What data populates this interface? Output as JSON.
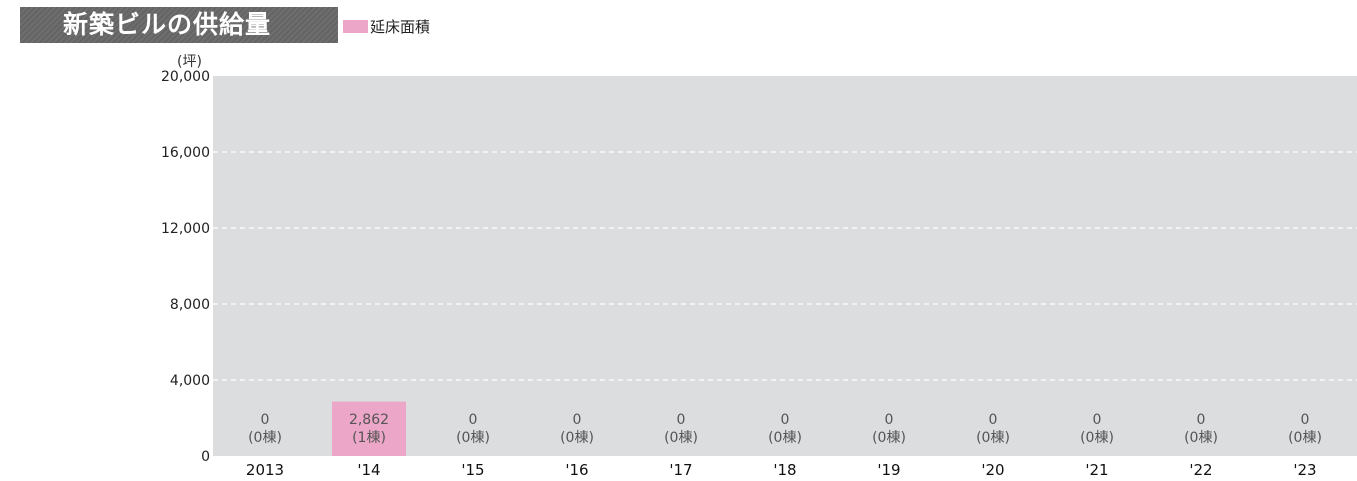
{
  "title": "新築ビルの供給量",
  "colors": {
    "plot_bg": "#dcdddf",
    "bar": "#eca6c8",
    "grid": "#ffffff",
    "title_bg": "#6a6a6a"
  },
  "chart_data": {
    "type": "bar",
    "unit_label": "(坪)",
    "legend": [
      {
        "name": "延床面積",
        "color": "#eca6c8"
      }
    ],
    "categories": [
      "2013",
      "'14",
      "'15",
      "'16",
      "'17",
      "'18",
      "'19",
      "'20",
      "'21",
      "'22",
      "'23"
    ],
    "series": [
      {
        "name": "延床面積",
        "values": [
          0,
          2862,
          0,
          0,
          0,
          0,
          0,
          0,
          0,
          0,
          0
        ]
      }
    ],
    "value_labels": [
      "0",
      "2,862",
      "0",
      "0",
      "0",
      "0",
      "0",
      "0",
      "0",
      "0",
      "0"
    ],
    "count_labels": [
      "(0棟)",
      "(1棟)",
      "(0棟)",
      "(0棟)",
      "(0棟)",
      "(0棟)",
      "(0棟)",
      "(0棟)",
      "(0棟)",
      "(0棟)",
      "(0棟)"
    ],
    "yticks": [
      0,
      4000,
      8000,
      12000,
      16000,
      20000
    ],
    "ytick_labels": [
      "0",
      "4,000",
      "8,000",
      "12,000",
      "16,000",
      "20,000"
    ],
    "ylim": [
      0,
      20000
    ],
    "grid": true,
    "legend_position": "top-left"
  }
}
